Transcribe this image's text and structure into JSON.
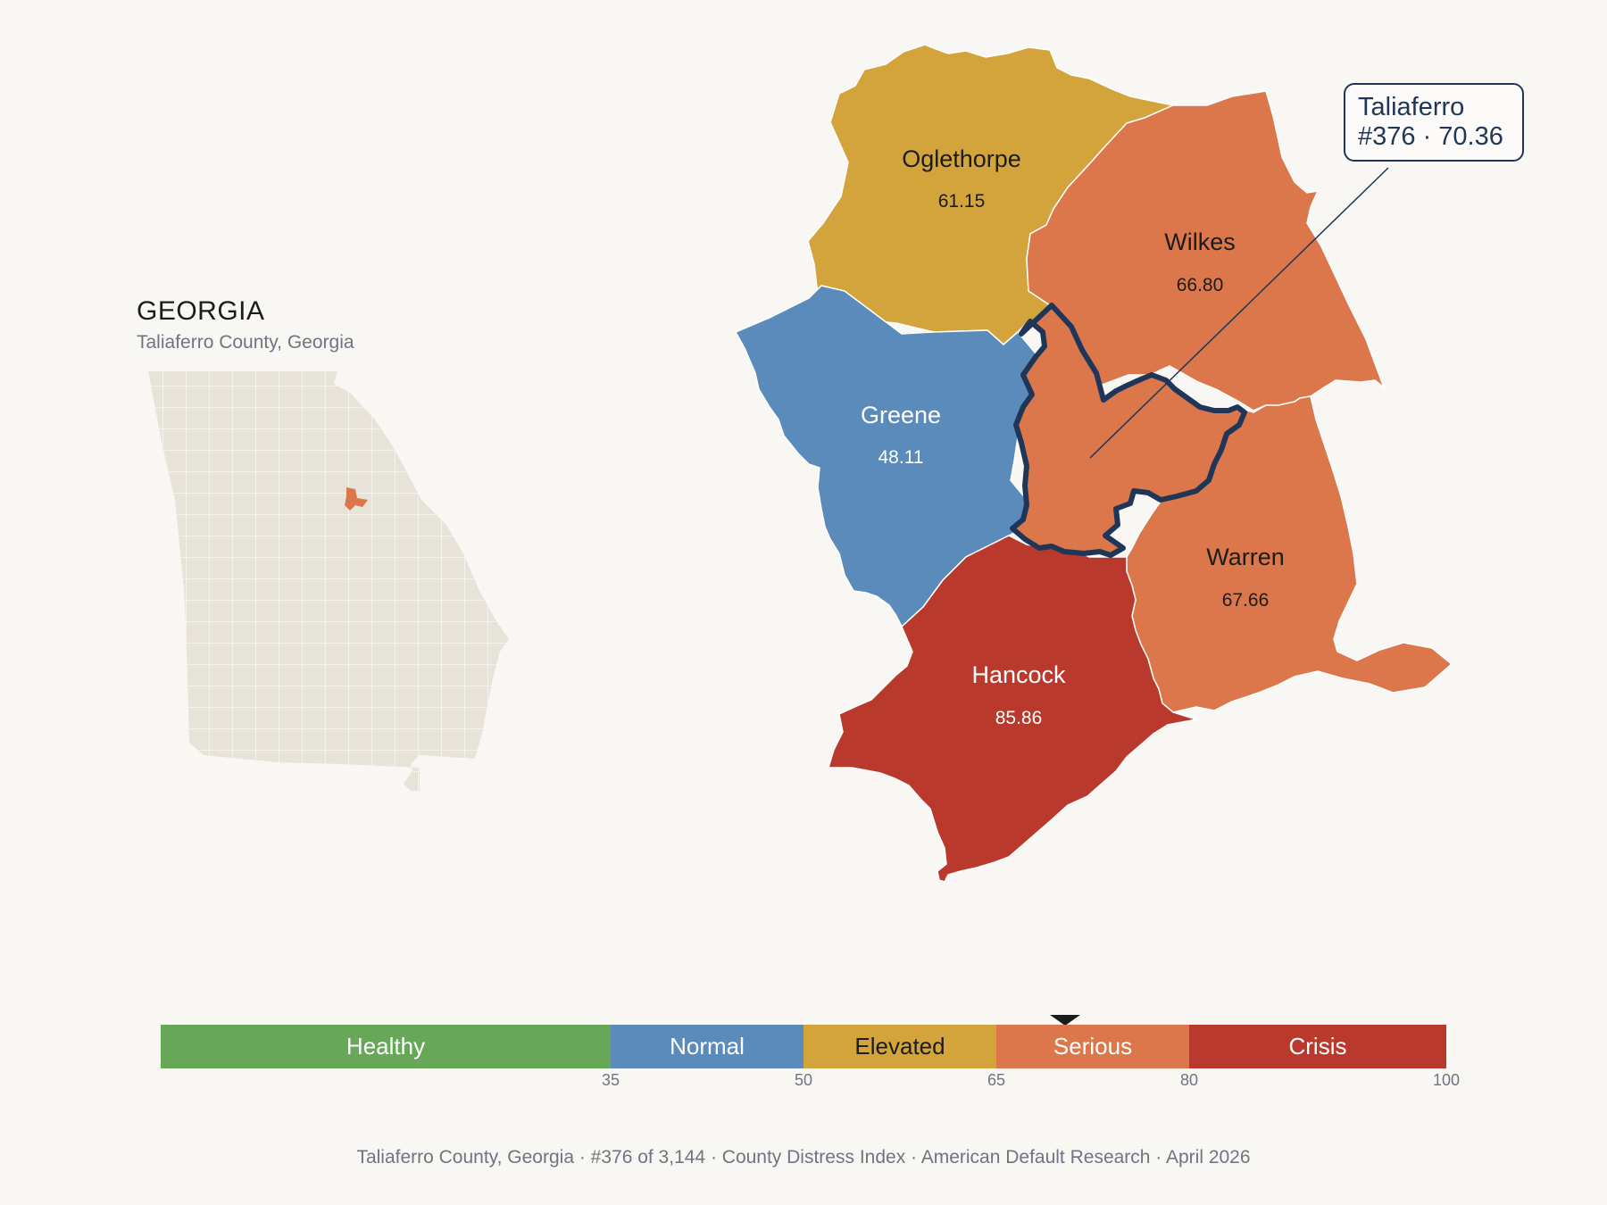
{
  "inset": {
    "state_title": "GEORGIA",
    "subtitle": "Taliaferro County, Georgia"
  },
  "map": {
    "counties": [
      {
        "name": "Oglethorpe",
        "value": "61.15",
        "category": "Elevated",
        "color": "#d3a43b"
      },
      {
        "name": "Wilkes",
        "value": "66.80",
        "category": "Serious",
        "color": "#db774a"
      },
      {
        "name": "Greene",
        "value": "48.11",
        "category": "Normal",
        "color": "#5b8bba"
      },
      {
        "name": "Warren",
        "value": "67.66",
        "category": "Serious",
        "color": "#db774a"
      },
      {
        "name": "Hancock",
        "value": "85.86",
        "category": "Crisis",
        "color": "#b93a2c"
      }
    ],
    "focus": {
      "name": "Taliaferro",
      "color": "#db774a",
      "outline": "#1f3658"
    }
  },
  "callout": {
    "line1": "Taliaferro",
    "line2": "#376 · 70.36"
  },
  "legend": {
    "segments": [
      {
        "label": "Healthy",
        "from": 0,
        "to": 35,
        "color": "#67a758"
      },
      {
        "label": "Normal",
        "from": 35,
        "to": 50,
        "color": "#5b8bba"
      },
      {
        "label": "Elevated",
        "from": 50,
        "to": 65,
        "color": "#d3a43b"
      },
      {
        "label": "Serious",
        "from": 65,
        "to": 80,
        "color": "#db774a"
      },
      {
        "label": "Crisis",
        "from": 80,
        "to": 100,
        "color": "#b93a2c"
      }
    ],
    "ticks": [
      "35",
      "50",
      "65",
      "80",
      "100"
    ],
    "marker_value": 70.36
  },
  "footer": "Taliaferro County, Georgia  ·  #376 of 3,144  ·  County Distress Index  ·  American Default Research  ·  April 2026"
}
